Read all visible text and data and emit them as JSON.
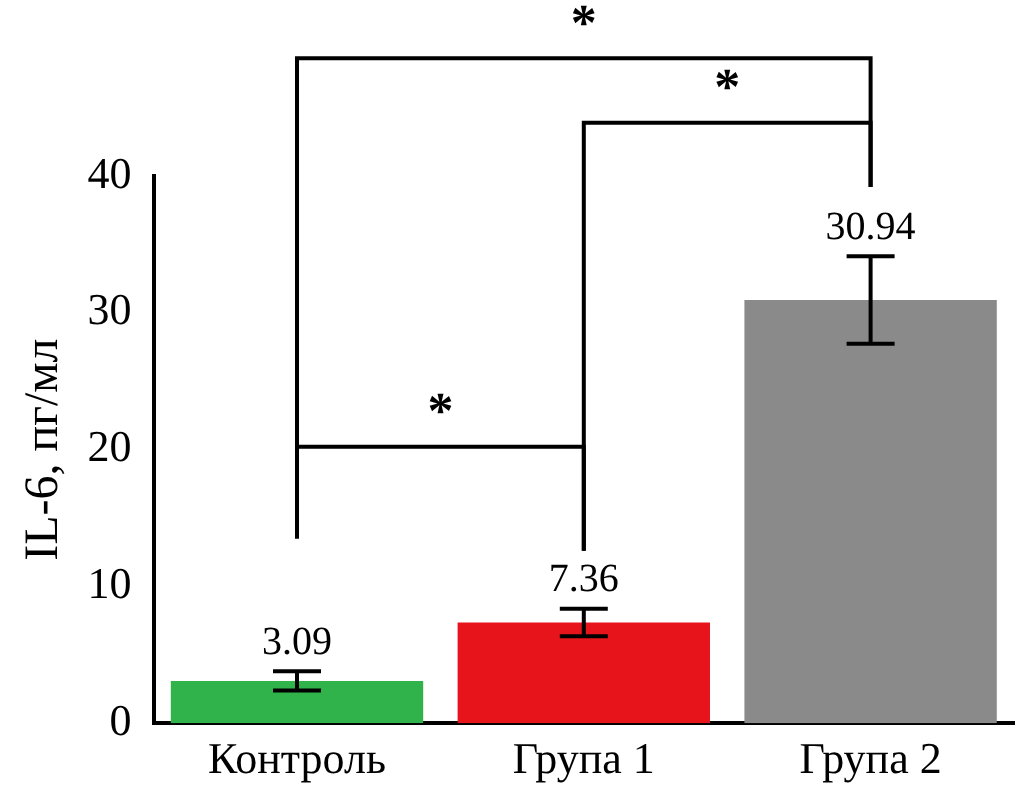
{
  "chart_data": {
    "type": "bar",
    "ylabel": "IL-6, пг/мл",
    "categories": [
      "Контроль",
      "Група 1",
      "Група 2"
    ],
    "values": [
      3.09,
      7.36,
      30.94
    ],
    "colors": [
      "#2fb34a",
      "#e8141c",
      "#8a8a8a"
    ],
    "errors": [
      0.7,
      1,
      3.2
    ],
    "ylim": [
      0,
      40
    ],
    "yticks": [
      0,
      10,
      20,
      30,
      40
    ],
    "grid": false,
    "legend": false,
    "data_labels": true,
    "annotations": [
      "*",
      "*",
      "*"
    ]
  }
}
